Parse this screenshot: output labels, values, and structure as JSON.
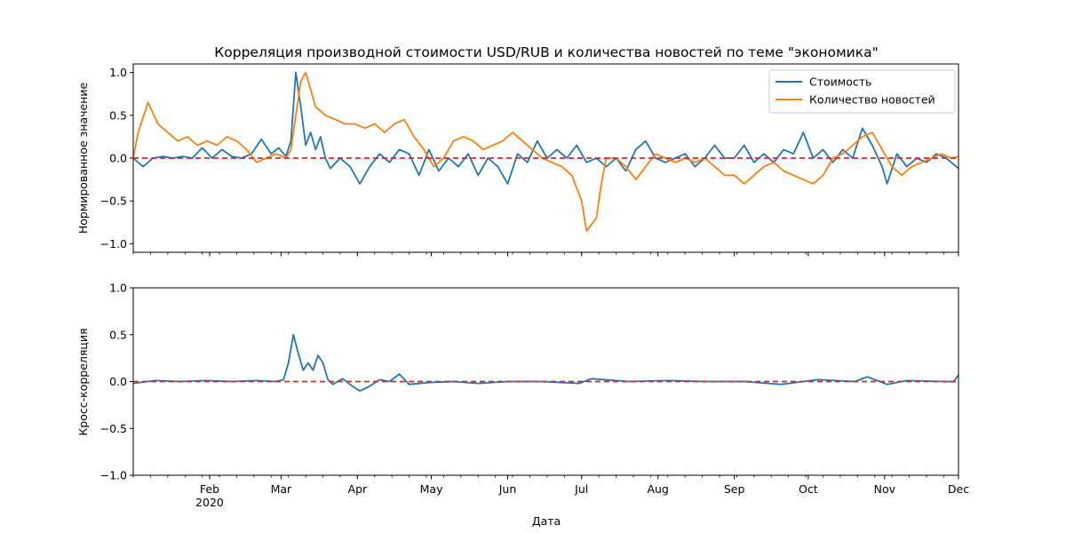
{
  "chart_data": [
    {
      "type": "line",
      "title": "Корреляция производной стоимости USD/RUB и количества новостей по теме \"экономика\"",
      "ylabel": "Нормированное значение",
      "xlabel": "",
      "xlim": [
        "2020-01-01",
        "2020-12-01"
      ],
      "ylim": [
        -1.1,
        1.1
      ],
      "yticks": [
        1.0,
        0.5,
        0.0,
        -0.5,
        -1.0
      ],
      "ytick_labels": [
        "1.0",
        "0.5",
        "0.0",
        "−0.5",
        "−1.0"
      ],
      "grid": false,
      "legend": "top-right",
      "reference_line": {
        "y": 0.0,
        "color": "#d62728",
        "style": "dashed"
      },
      "series": [
        {
          "name": "Стоимость",
          "color": "#1f77b4",
          "points": [
            [
              "2020-01-01",
              0.0
            ],
            [
              "2020-01-05",
              -0.1
            ],
            [
              "2020-01-09",
              0.0
            ],
            [
              "2020-01-13",
              0.02
            ],
            [
              "2020-01-17",
              0.0
            ],
            [
              "2020-01-21",
              0.02
            ],
            [
              "2020-01-25",
              0.0
            ],
            [
              "2020-01-29",
              0.12
            ],
            [
              "2020-02-02",
              0.0
            ],
            [
              "2020-02-06",
              0.1
            ],
            [
              "2020-02-10",
              0.02
            ],
            [
              "2020-02-14",
              0.0
            ],
            [
              "2020-02-18",
              0.05
            ],
            [
              "2020-02-22",
              0.22
            ],
            [
              "2020-02-26",
              0.05
            ],
            [
              "2020-02-29",
              0.12
            ],
            [
              "2020-03-03",
              0.02
            ],
            [
              "2020-03-05",
              0.2
            ],
            [
              "2020-03-07",
              1.0
            ],
            [
              "2020-03-09",
              0.6
            ],
            [
              "2020-03-11",
              0.15
            ],
            [
              "2020-03-13",
              0.3
            ],
            [
              "2020-03-15",
              0.1
            ],
            [
              "2020-03-17",
              0.25
            ],
            [
              "2020-03-19",
              0.0
            ],
            [
              "2020-03-21",
              -0.12
            ],
            [
              "2020-03-25",
              0.0
            ],
            [
              "2020-03-29",
              -0.1
            ],
            [
              "2020-04-02",
              -0.3
            ],
            [
              "2020-04-06",
              -0.1
            ],
            [
              "2020-04-10",
              0.05
            ],
            [
              "2020-04-14",
              -0.05
            ],
            [
              "2020-04-18",
              0.1
            ],
            [
              "2020-04-22",
              0.05
            ],
            [
              "2020-04-26",
              -0.2
            ],
            [
              "2020-04-30",
              0.1
            ],
            [
              "2020-05-04",
              -0.15
            ],
            [
              "2020-05-08",
              0.0
            ],
            [
              "2020-05-12",
              -0.1
            ],
            [
              "2020-05-16",
              0.05
            ],
            [
              "2020-05-20",
              -0.2
            ],
            [
              "2020-05-24",
              0.0
            ],
            [
              "2020-05-28",
              -0.1
            ],
            [
              "2020-06-01",
              -0.3
            ],
            [
              "2020-06-05",
              0.05
            ],
            [
              "2020-06-09",
              -0.05
            ],
            [
              "2020-06-13",
              0.2
            ],
            [
              "2020-06-17",
              0.0
            ],
            [
              "2020-06-21",
              0.1
            ],
            [
              "2020-06-25",
              0.0
            ],
            [
              "2020-06-29",
              0.15
            ],
            [
              "2020-07-03",
              -0.05
            ],
            [
              "2020-07-07",
              0.0
            ],
            [
              "2020-07-11",
              -0.1
            ],
            [
              "2020-07-15",
              0.0
            ],
            [
              "2020-07-19",
              -0.15
            ],
            [
              "2020-07-23",
              0.1
            ],
            [
              "2020-07-27",
              0.2
            ],
            [
              "2020-07-31",
              0.0
            ],
            [
              "2020-08-04",
              -0.05
            ],
            [
              "2020-08-08",
              0.0
            ],
            [
              "2020-08-12",
              0.05
            ],
            [
              "2020-08-16",
              -0.1
            ],
            [
              "2020-08-20",
              0.0
            ],
            [
              "2020-08-24",
              0.15
            ],
            [
              "2020-08-28",
              0.0
            ],
            [
              "2020-09-01",
              0.0
            ],
            [
              "2020-09-05",
              0.15
            ],
            [
              "2020-09-09",
              -0.05
            ],
            [
              "2020-09-13",
              0.05
            ],
            [
              "2020-09-17",
              -0.05
            ],
            [
              "2020-09-21",
              0.1
            ],
            [
              "2020-09-25",
              0.05
            ],
            [
              "2020-09-29",
              0.3
            ],
            [
              "2020-10-03",
              0.0
            ],
            [
              "2020-10-07",
              0.1
            ],
            [
              "2020-10-11",
              -0.05
            ],
            [
              "2020-10-15",
              0.1
            ],
            [
              "2020-10-19",
              0.0
            ],
            [
              "2020-10-23",
              0.35
            ],
            [
              "2020-10-27",
              0.15
            ],
            [
              "2020-10-31",
              -0.1
            ],
            [
              "2020-11-02",
              -0.3
            ],
            [
              "2020-11-06",
              0.05
            ],
            [
              "2020-11-10",
              -0.1
            ],
            [
              "2020-11-14",
              0.0
            ],
            [
              "2020-11-18",
              -0.05
            ],
            [
              "2020-11-22",
              0.05
            ],
            [
              "2020-11-26",
              0.0
            ],
            [
              "2020-12-01",
              -0.12
            ]
          ]
        },
        {
          "name": "Количество новостей",
          "color": "#ff7f0e",
          "points": [
            [
              "2020-01-01",
              0.0
            ],
            [
              "2020-01-03",
              0.3
            ],
            [
              "2020-01-07",
              0.65
            ],
            [
              "2020-01-11",
              0.4
            ],
            [
              "2020-01-15",
              0.3
            ],
            [
              "2020-01-19",
              0.2
            ],
            [
              "2020-01-23",
              0.25
            ],
            [
              "2020-01-27",
              0.15
            ],
            [
              "2020-01-31",
              0.2
            ],
            [
              "2020-02-04",
              0.15
            ],
            [
              "2020-02-08",
              0.25
            ],
            [
              "2020-02-12",
              0.2
            ],
            [
              "2020-02-16",
              0.1
            ],
            [
              "2020-02-20",
              -0.05
            ],
            [
              "2020-02-24",
              0.0
            ],
            [
              "2020-02-28",
              0.05
            ],
            [
              "2020-03-03",
              0.0
            ],
            [
              "2020-03-05",
              0.1
            ],
            [
              "2020-03-07",
              0.5
            ],
            [
              "2020-03-09",
              0.9
            ],
            [
              "2020-03-11",
              1.0
            ],
            [
              "2020-03-13",
              0.8
            ],
            [
              "2020-03-15",
              0.6
            ],
            [
              "2020-03-19",
              0.5
            ],
            [
              "2020-03-23",
              0.45
            ],
            [
              "2020-03-27",
              0.4
            ],
            [
              "2020-03-31",
              0.4
            ],
            [
              "2020-04-04",
              0.35
            ],
            [
              "2020-04-08",
              0.4
            ],
            [
              "2020-04-12",
              0.3
            ],
            [
              "2020-04-16",
              0.4
            ],
            [
              "2020-04-20",
              0.45
            ],
            [
              "2020-04-24",
              0.25
            ],
            [
              "2020-04-28",
              0.1
            ],
            [
              "2020-05-02",
              -0.1
            ],
            [
              "2020-05-06",
              0.0
            ],
            [
              "2020-05-10",
              0.2
            ],
            [
              "2020-05-14",
              0.25
            ],
            [
              "2020-05-18",
              0.2
            ],
            [
              "2020-05-22",
              0.1
            ],
            [
              "2020-05-26",
              0.15
            ],
            [
              "2020-05-30",
              0.2
            ],
            [
              "2020-06-03",
              0.3
            ],
            [
              "2020-06-07",
              0.2
            ],
            [
              "2020-06-11",
              0.1
            ],
            [
              "2020-06-15",
              0.0
            ],
            [
              "2020-06-19",
              -0.05
            ],
            [
              "2020-06-23",
              -0.1
            ],
            [
              "2020-06-27",
              -0.2
            ],
            [
              "2020-07-01",
              -0.5
            ],
            [
              "2020-07-03",
              -0.85
            ],
            [
              "2020-07-07",
              -0.7
            ],
            [
              "2020-07-09",
              -0.3
            ],
            [
              "2020-07-11",
              0.0
            ],
            [
              "2020-07-15",
              0.0
            ],
            [
              "2020-07-19",
              -0.1
            ],
            [
              "2020-07-23",
              -0.25
            ],
            [
              "2020-07-27",
              -0.1
            ],
            [
              "2020-07-31",
              0.05
            ],
            [
              "2020-08-04",
              0.0
            ],
            [
              "2020-08-08",
              -0.05
            ],
            [
              "2020-08-12",
              0.0
            ],
            [
              "2020-08-16",
              -0.05
            ],
            [
              "2020-08-20",
              0.0
            ],
            [
              "2020-08-24",
              -0.1
            ],
            [
              "2020-08-28",
              -0.2
            ],
            [
              "2020-09-01",
              -0.2
            ],
            [
              "2020-09-05",
              -0.3
            ],
            [
              "2020-09-09",
              -0.2
            ],
            [
              "2020-09-13",
              -0.1
            ],
            [
              "2020-09-17",
              -0.05
            ],
            [
              "2020-09-21",
              -0.15
            ],
            [
              "2020-09-25",
              -0.2
            ],
            [
              "2020-09-29",
              -0.25
            ],
            [
              "2020-10-03",
              -0.3
            ],
            [
              "2020-10-07",
              -0.2
            ],
            [
              "2020-10-11",
              0.0
            ],
            [
              "2020-10-15",
              0.05
            ],
            [
              "2020-10-19",
              0.15
            ],
            [
              "2020-10-23",
              0.25
            ],
            [
              "2020-10-27",
              0.3
            ],
            [
              "2020-10-31",
              0.1
            ],
            [
              "2020-11-04",
              -0.1
            ],
            [
              "2020-11-08",
              -0.2
            ],
            [
              "2020-11-12",
              -0.1
            ],
            [
              "2020-11-16",
              -0.05
            ],
            [
              "2020-11-20",
              0.0
            ],
            [
              "2020-11-24",
              0.05
            ],
            [
              "2020-11-28",
              0.0
            ],
            [
              "2020-12-01",
              0.02
            ]
          ]
        }
      ]
    },
    {
      "type": "line",
      "title": "",
      "ylabel": "Кросс-корреляция",
      "xlabel": "Дата",
      "xlim": [
        "2020-01-01",
        "2020-12-01"
      ],
      "ylim": [
        -1.0,
        1.0
      ],
      "yticks": [
        1.0,
        0.5,
        0.0,
        -0.5,
        -1.0
      ],
      "ytick_labels": [
        "1.0",
        "0.5",
        "0.0",
        "−0.5",
        "−1.0"
      ],
      "xticks": [
        "2020-02-01",
        "2020-03-01",
        "2020-04-01",
        "2020-05-01",
        "2020-06-01",
        "2020-07-01",
        "2020-08-01",
        "2020-09-01",
        "2020-10-01",
        "2020-11-01",
        "2020-12-01"
      ],
      "xtick_labels": [
        "Feb",
        "Mar",
        "Apr",
        "May",
        "Jun",
        "Jul",
        "Aug",
        "Sep",
        "Oct",
        "Nov",
        "Dec"
      ],
      "xtick_year_label": "2020",
      "grid": false,
      "reference_line": {
        "y": 0.0,
        "color": "#d62728",
        "style": "dashed"
      },
      "series": [
        {
          "color": "#1f77b4",
          "points": [
            [
              "2020-01-01",
              -0.02
            ],
            [
              "2020-01-10",
              0.01
            ],
            [
              "2020-01-20",
              0.0
            ],
            [
              "2020-01-30",
              0.01
            ],
            [
              "2020-02-10",
              0.0
            ],
            [
              "2020-02-20",
              0.01
            ],
            [
              "2020-02-28",
              0.0
            ],
            [
              "2020-03-02",
              0.02
            ],
            [
              "2020-03-04",
              0.2
            ],
            [
              "2020-03-06",
              0.5
            ],
            [
              "2020-03-08",
              0.3
            ],
            [
              "2020-03-10",
              0.12
            ],
            [
              "2020-03-12",
              0.2
            ],
            [
              "2020-03-14",
              0.12
            ],
            [
              "2020-03-16",
              0.28
            ],
            [
              "2020-03-18",
              0.2
            ],
            [
              "2020-03-20",
              0.02
            ],
            [
              "2020-03-22",
              -0.03
            ],
            [
              "2020-03-26",
              0.03
            ],
            [
              "2020-03-30",
              -0.05
            ],
            [
              "2020-04-02",
              -0.1
            ],
            [
              "2020-04-06",
              -0.05
            ],
            [
              "2020-04-10",
              0.02
            ],
            [
              "2020-04-14",
              0.0
            ],
            [
              "2020-04-18",
              0.08
            ],
            [
              "2020-04-22",
              -0.03
            ],
            [
              "2020-04-30",
              -0.01
            ],
            [
              "2020-05-10",
              0.0
            ],
            [
              "2020-05-20",
              -0.02
            ],
            [
              "2020-06-01",
              0.0
            ],
            [
              "2020-06-15",
              0.0
            ],
            [
              "2020-06-30",
              -0.02
            ],
            [
              "2020-07-05",
              0.03
            ],
            [
              "2020-07-20",
              0.0
            ],
            [
              "2020-08-05",
              0.01
            ],
            [
              "2020-08-20",
              0.0
            ],
            [
              "2020-09-05",
              0.0
            ],
            [
              "2020-09-20",
              -0.03
            ],
            [
              "2020-10-05",
              0.02
            ],
            [
              "2020-10-20",
              0.0
            ],
            [
              "2020-10-25",
              0.05
            ],
            [
              "2020-10-30",
              0.0
            ],
            [
              "2020-11-02",
              -0.03
            ],
            [
              "2020-11-10",
              0.01
            ],
            [
              "2020-11-25",
              0.0
            ],
            [
              "2020-11-29",
              0.0
            ],
            [
              "2020-12-01",
              0.07
            ]
          ]
        }
      ]
    }
  ]
}
